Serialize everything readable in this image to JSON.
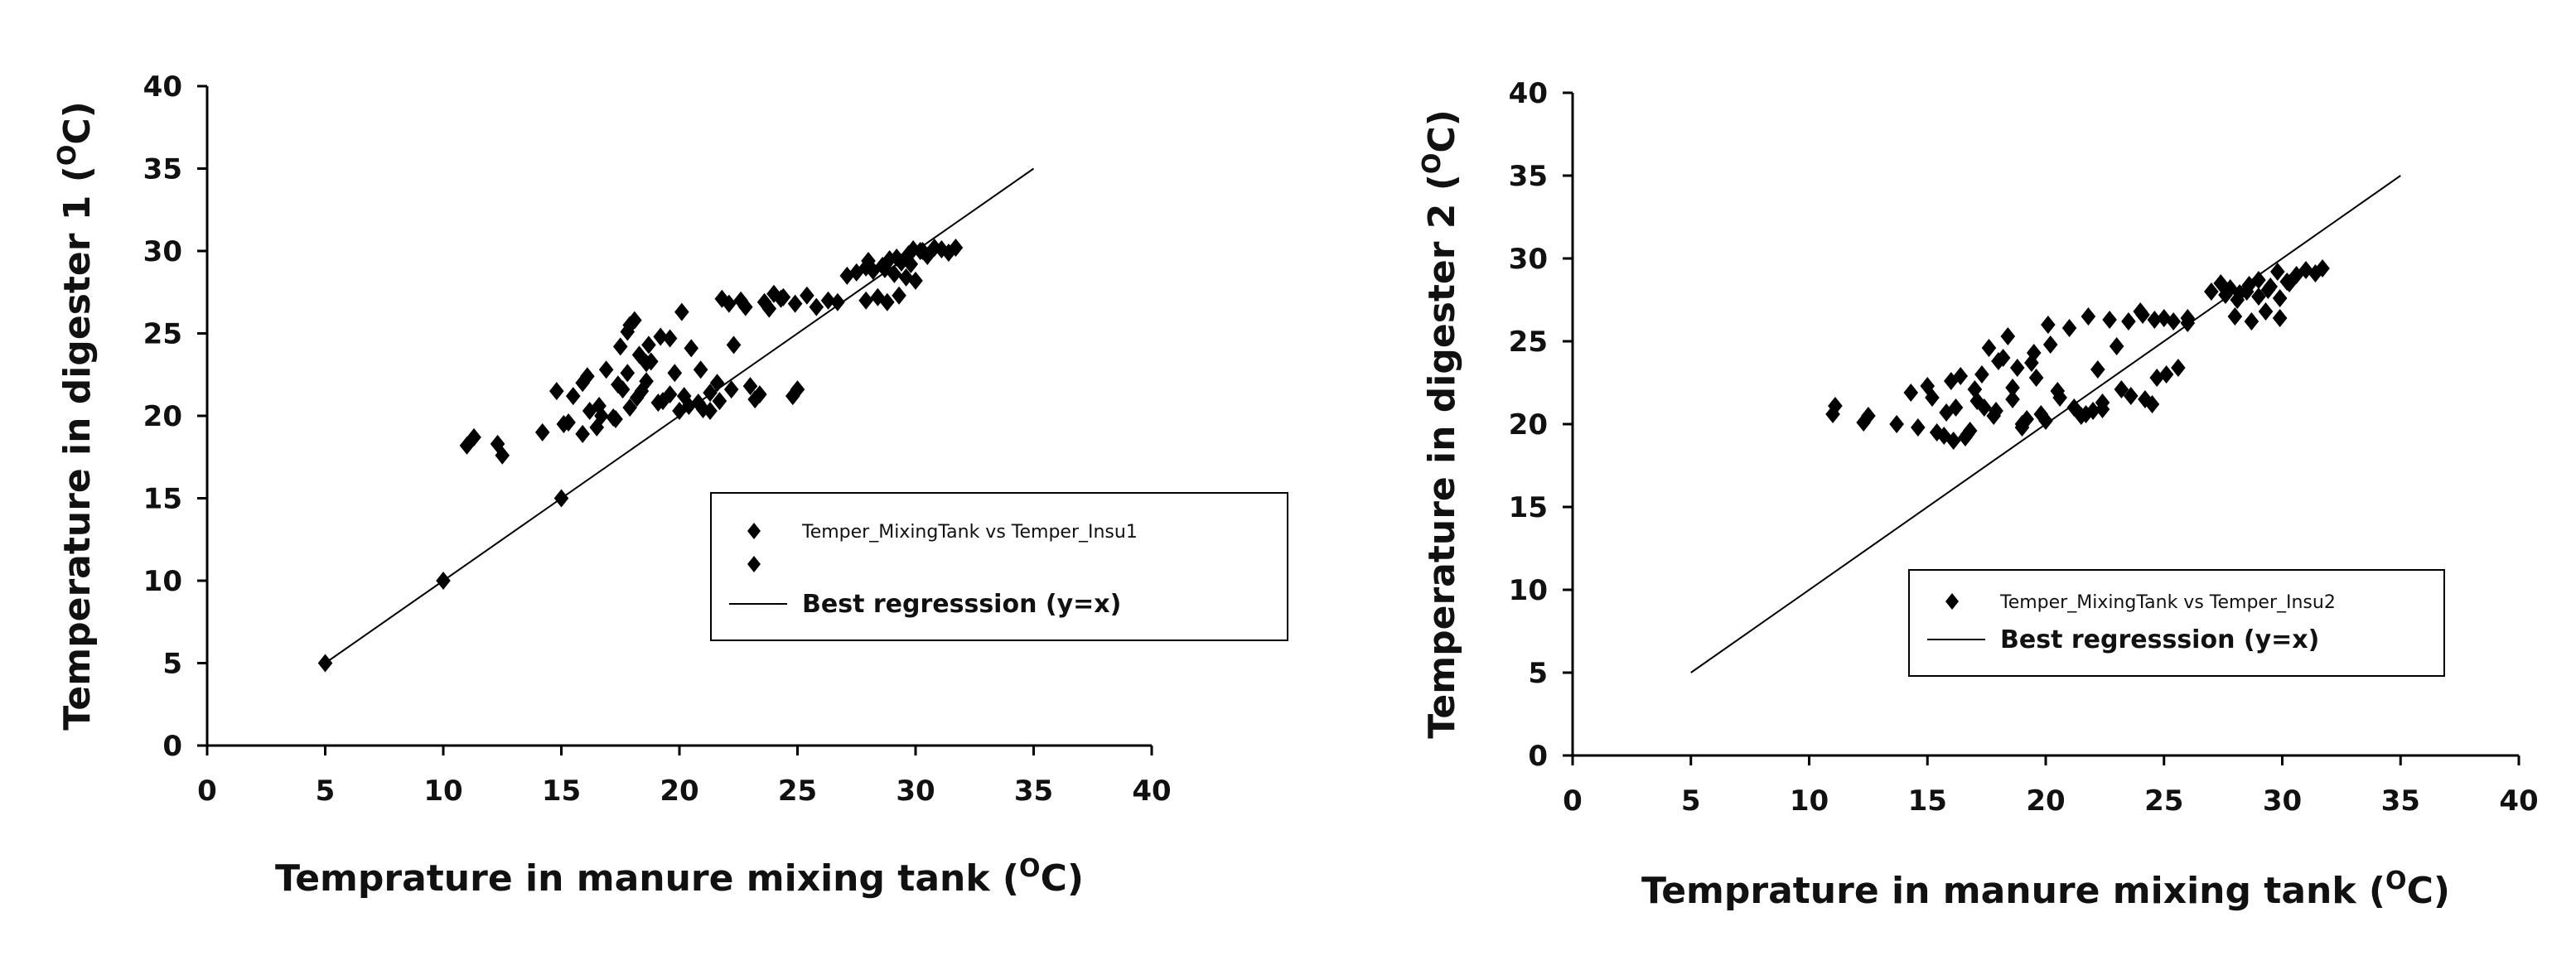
{
  "chart_data": [
    {
      "type": "scatter",
      "title": "",
      "xlabel": "Temprature in manure mixing tank",
      "ylabel": "Temperature in digester 1",
      "unit_open": "(",
      "unit_sup": "O",
      "unit_close": "C)",
      "xlim": [
        0,
        40
      ],
      "ylim": [
        0,
        40
      ],
      "xticks": [
        0,
        5,
        10,
        15,
        20,
        25,
        30,
        35,
        40
      ],
      "yticks": [
        0,
        5,
        10,
        15,
        20,
        25,
        30,
        35,
        40
      ],
      "series": [
        {
          "name": "Temper_MixingTank vs Temper_Insu1",
          "kind": "points",
          "x": [
            5,
            10,
            15,
            11,
            11.3,
            12.3,
            12.5,
            14.2,
            14.8,
            15.1,
            15.5,
            15.9,
            16.2,
            16.6,
            16.9,
            17.3,
            17.6,
            17.9,
            18.3,
            18.7,
            15.3,
            15.9,
            16.5,
            17.2,
            17.8,
            18.2,
            18.6,
            19.1,
            19.6,
            20.0,
            16.1,
            16.7,
            17.4,
            17.9,
            18.6,
            19.2,
            19.8,
            20.2,
            17.5,
            17.8,
            18.1,
            18.4,
            18.8,
            19.3,
            19.6,
            20.1,
            20.4,
            20.8,
            21.3,
            21.8,
            22.2,
            20.5,
            20.9,
            21.3,
            21.7,
            22.1,
            22.6,
            23.0,
            23.4,
            21.0,
            21.6,
            22.3,
            22.8,
            23.2,
            23.6,
            24.0,
            24.4,
            24.8,
            25.0,
            23.8,
            24.3,
            24.9,
            25.4,
            25.8,
            26.3,
            26.7,
            27.1,
            27.5,
            27.9,
            28.2,
            28.6,
            28.9,
            29.1,
            29.4,
            29.7,
            29.9,
            30.2,
            30.5,
            30.8,
            31.1,
            31.4,
            31.7,
            27.9,
            28.4,
            28.8,
            29.3,
            29.6,
            30.0,
            28.0,
            28.7,
            29.2,
            29.8,
            30.3
          ],
          "y": [
            5,
            10,
            15,
            18.2,
            18.7,
            18.3,
            17.6,
            19.0,
            21.5,
            19.5,
            21.2,
            18.9,
            20.3,
            20.6,
            22.8,
            19.8,
            21.6,
            25.5,
            23.7,
            24.3,
            19.6,
            22.0,
            19.3,
            19.9,
            22.6,
            21.1,
            23.2,
            20.8,
            21.3,
            20.3,
            22.4,
            20.0,
            21.9,
            20.5,
            22.1,
            24.8,
            22.6,
            21.2,
            24.2,
            25.1,
            25.8,
            21.5,
            23.3,
            20.9,
            24.7,
            26.3,
            20.6,
            20.8,
            21.4,
            27.1,
            21.6,
            24.1,
            22.8,
            20.3,
            20.9,
            26.8,
            27.0,
            21.8,
            21.3,
            20.4,
            22.0,
            24.3,
            26.6,
            21.0,
            26.9,
            27.4,
            27.2,
            21.2,
            21.6,
            26.5,
            27.1,
            26.8,
            27.3,
            26.6,
            27.0,
            26.9,
            28.5,
            28.7,
            29.0,
            28.8,
            29.1,
            29.5,
            28.6,
            29.3,
            29.8,
            30.1,
            30.0,
            29.7,
            30.2,
            30.1,
            29.9,
            30.2,
            27.0,
            27.2,
            26.9,
            27.3,
            28.4,
            28.2,
            29.4,
            28.9,
            29.6,
            29.2,
            30.0
          ]
        },
        {
          "name": "Best regresssion (y=x)",
          "kind": "line",
          "x": [
            5,
            35
          ],
          "y": [
            5,
            35
          ]
        }
      ],
      "legend_extra_marker": true,
      "legend_position": "right"
    },
    {
      "type": "scatter",
      "title": "",
      "xlabel": "Temprature in manure mixing tank",
      "ylabel": "Temperature in digester 2",
      "unit_open": "(",
      "unit_sup": "O",
      "unit_close": "C)",
      "xlim": [
        0,
        40
      ],
      "ylim": [
        0,
        40
      ],
      "xticks": [
        0,
        5,
        10,
        15,
        20,
        25,
        30,
        35,
        40
      ],
      "yticks": [
        0,
        5,
        10,
        15,
        20,
        25,
        30,
        35,
        40
      ],
      "series": [
        {
          "name": "Temper_MixingTank vs Temper_Insu2",
          "kind": "points",
          "x": [
            11,
            11.1,
            12.3,
            12.5,
            13.7,
            14.3,
            14.6,
            15.0,
            15.4,
            15.8,
            16.1,
            16.4,
            16.7,
            17.0,
            15.2,
            15.7,
            16.2,
            16.8,
            17.3,
            17.9,
            16.0,
            16.6,
            17.1,
            17.6,
            18.0,
            18.4,
            18.8,
            19.2,
            19.6,
            17.4,
            17.8,
            18.2,
            18.6,
            19.0,
            19.4,
            19.8,
            20.2,
            18.6,
            19.0,
            19.5,
            20.0,
            20.5,
            21.0,
            21.5,
            22.0,
            22.4,
            20.1,
            20.6,
            21.2,
            21.7,
            22.2,
            22.7,
            23.2,
            21.8,
            22.4,
            23.0,
            23.5,
            24.0,
            24.5,
            25.0,
            23.6,
            24.1,
            24.6,
            25.1,
            25.6,
            26.0,
            24.2,
            24.7,
            25.4,
            26.0,
            27.0,
            27.4,
            27.8,
            28.2,
            28.6,
            29.0,
            29.4,
            29.8,
            30.2,
            30.6,
            31.0,
            31.4,
            31.7,
            27.6,
            28.1,
            28.5,
            29.0,
            29.5,
            29.9,
            30.3,
            28.0,
            28.7,
            29.3,
            29.9
          ],
          "y": [
            20.6,
            21.1,
            20.1,
            20.5,
            20.0,
            21.9,
            19.8,
            22.3,
            19.5,
            20.7,
            19.0,
            22.9,
            19.4,
            22.1,
            21.6,
            19.3,
            21.0,
            19.6,
            23.0,
            20.8,
            22.6,
            19.2,
            21.4,
            24.6,
            23.8,
            25.3,
            23.4,
            20.3,
            22.8,
            21.0,
            20.5,
            24.0,
            22.2,
            20.0,
            23.7,
            20.6,
            24.8,
            21.5,
            19.8,
            24.3,
            20.2,
            22.0,
            25.8,
            20.5,
            20.8,
            21.3,
            26.0,
            21.6,
            21.0,
            20.6,
            23.3,
            26.3,
            22.1,
            26.5,
            20.9,
            24.7,
            26.2,
            26.8,
            21.2,
            26.4,
            21.7,
            26.6,
            26.3,
            23.0,
            23.4,
            26.1,
            21.5,
            22.8,
            26.2,
            26.4,
            28.0,
            28.5,
            28.2,
            27.9,
            28.4,
            28.7,
            28.1,
            29.2,
            28.6,
            29.0,
            29.3,
            29.1,
            29.4,
            27.8,
            27.5,
            28.0,
            27.7,
            28.3,
            27.6,
            28.5,
            26.5,
            26.2,
            26.8,
            26.4
          ]
        },
        {
          "name": "Best regresssion (y=x)",
          "kind": "line",
          "x": [
            5,
            35
          ],
          "y": [
            5,
            35
          ]
        }
      ],
      "legend_extra_marker": false,
      "legend_position": "right"
    }
  ]
}
